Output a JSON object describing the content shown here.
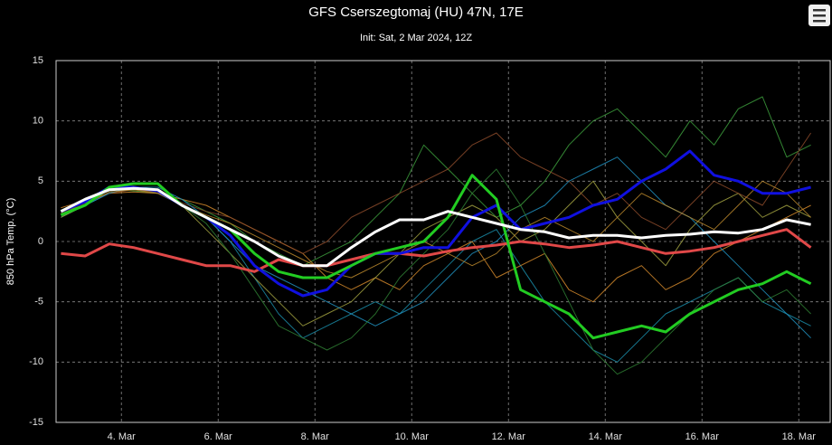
{
  "chart_data": {
    "type": "line",
    "title": "GFS Cserszegtomaj (HU) 47N, 17E",
    "subtitle": "Init: Sat, 2 Mar 2024, 12Z",
    "y_label": "850 hPa Temp. (°C)",
    "grid": true,
    "xlim": [
      2.65,
      18.65
    ],
    "ylim": [
      -15,
      15
    ],
    "yticks": [
      -15,
      -10,
      -5,
      0,
      5,
      10,
      15
    ],
    "xticks": [
      {
        "value": 4,
        "label": "4. Mar"
      },
      {
        "value": 6,
        "label": "6. Mar"
      },
      {
        "value": 8,
        "label": "8. Mar"
      },
      {
        "value": 10,
        "label": "10. Mar"
      },
      {
        "value": 12,
        "label": "12. Mar"
      },
      {
        "value": 14,
        "label": "14. Mar"
      },
      {
        "value": 16,
        "label": "16. Mar"
      },
      {
        "value": 18,
        "label": "18. Mar"
      }
    ],
    "x": [
      2.75,
      3.25,
      3.75,
      4.25,
      4.75,
      5.25,
      5.75,
      6.25,
      6.75,
      7.25,
      7.75,
      8.25,
      8.75,
      9.25,
      9.75,
      10.25,
      10.75,
      11.25,
      11.75,
      12.25,
      12.75,
      13.25,
      13.75,
      14.25,
      14.75,
      15.25,
      15.75,
      16.25,
      16.75,
      17.25,
      17.75,
      18.25
    ],
    "series": [
      {
        "color": "#1a8ca8",
        "width": 1,
        "values": [
          2,
          3,
          4,
          4.5,
          4,
          3,
          2,
          0,
          -3,
          -6,
          -8,
          -7,
          -6,
          -5,
          -6,
          -4,
          -2,
          0,
          1,
          -2,
          -5,
          -7,
          -9,
          -10,
          -8,
          -6,
          -5,
          -4,
          -3,
          -5,
          -6,
          -7
        ]
      },
      {
        "color": "#3c9c3c",
        "width": 1,
        "values": [
          2.5,
          3,
          4.3,
          4.2,
          4,
          3.5,
          2.5,
          1.5,
          0,
          -1,
          -2,
          -1,
          0,
          2,
          4,
          8,
          6,
          4,
          2,
          3,
          5,
          8,
          10,
          11,
          9,
          7,
          10,
          8,
          11,
          12,
          7,
          8
        ]
      },
      {
        "color": "#d58a2c",
        "width": 1,
        "values": [
          2.8,
          3.4,
          4,
          4.1,
          4,
          3.5,
          3,
          2,
          1,
          0,
          -1,
          -3,
          -4,
          -3,
          -4,
          -2,
          -1,
          0,
          -3,
          -2,
          -1,
          -4,
          -5,
          -3,
          -2,
          -4,
          -3,
          -1,
          0,
          1,
          2,
          3
        ]
      },
      {
        "color": "#a0a040",
        "width": 1,
        "values": [
          2,
          3,
          4.5,
          4.6,
          4.2,
          3,
          1,
          -1,
          -3,
          -5,
          -7,
          -6,
          -5,
          -3,
          -1,
          1,
          2,
          3,
          2,
          0,
          1,
          3,
          5,
          2,
          0,
          -2,
          1,
          3,
          4,
          2,
          3,
          2
        ]
      },
      {
        "color": "#8b4a2a",
        "width": 1,
        "values": [
          2.4,
          3.2,
          4,
          4.3,
          4.1,
          3.2,
          2.5,
          2,
          1,
          0,
          -1,
          0,
          2,
          3,
          4,
          5,
          6,
          8,
          9,
          7,
          6,
          5,
          3,
          4,
          2,
          1,
          3,
          5,
          4,
          3,
          6,
          9
        ]
      },
      {
        "color": "#2090c0",
        "width": 1,
        "values": [
          2.2,
          3,
          4,
          4.5,
          4.5,
          3.5,
          2,
          0,
          -2,
          -3,
          -4,
          -5,
          -6,
          -7,
          -6,
          -5,
          -3,
          -1,
          0,
          2,
          3,
          5,
          6,
          7,
          5,
          3,
          2,
          0,
          -2,
          -4,
          -6,
          -8
        ]
      },
      {
        "color": "#2e7d32",
        "width": 1,
        "values": [
          2.6,
          3.5,
          4.2,
          4.4,
          4.3,
          3,
          1.5,
          -1,
          -4,
          -7,
          -8,
          -9,
          -8,
          -6,
          -3,
          -1,
          1,
          4,
          6,
          3,
          -1,
          -5,
          -9,
          -11,
          -10,
          -8,
          -6,
          -4,
          -3,
          -5,
          -4,
          -6
        ]
      },
      {
        "color": "#b8862b",
        "width": 1,
        "values": [
          2.3,
          3.1,
          4.1,
          4.3,
          4,
          3,
          2.2,
          1.5,
          0.5,
          -0.5,
          -1.5,
          -2.5,
          -3,
          -2,
          -1,
          0,
          -1,
          -2,
          -1,
          1,
          2,
          1,
          0,
          2,
          4,
          3,
          2,
          1,
          3,
          5,
          4,
          2
        ]
      },
      {
        "color": "#e04848",
        "width": 3,
        "values": [
          -1,
          -1.2,
          -0.2,
          -0.5,
          -1,
          -1.5,
          -2,
          -2,
          -2.5,
          -1.5,
          -2,
          -2,
          -1.5,
          -1,
          -1,
          -1.2,
          -0.8,
          -0.5,
          -0.3,
          0,
          -0.2,
          -0.5,
          -0.3,
          0,
          -0.5,
          -1,
          -0.8,
          -0.5,
          0,
          0.5,
          1,
          -0.5
        ]
      },
      {
        "color": "#1010e0",
        "width": 3,
        "values": [
          2.5,
          3.3,
          4.5,
          4.5,
          4.2,
          3,
          2,
          0.5,
          -2,
          -3.5,
          -4.5,
          -4,
          -2,
          -1,
          -1,
          -0.5,
          -0.5,
          2,
          3,
          1,
          1.5,
          2,
          3,
          3.5,
          5,
          6,
          7.5,
          5.5,
          5,
          4,
          4,
          4.5
        ]
      },
      {
        "color": "#22cc22",
        "width": 3,
        "values": [
          2.2,
          3,
          4.5,
          4.8,
          4.8,
          3,
          2,
          1,
          -1,
          -2.5,
          -3,
          -3,
          -2,
          -1,
          -0.5,
          0,
          2,
          5.5,
          3.5,
          -4,
          -5,
          -6,
          -8,
          -7.5,
          -7,
          -7.5,
          -6,
          -5,
          -4,
          -3.5,
          -2.5,
          -3.5
        ]
      },
      {
        "color": "#ffffff",
        "width": 3,
        "values": [
          2.5,
          3.5,
          4.3,
          4.4,
          4.3,
          3,
          2,
          1,
          0,
          -1.2,
          -2,
          -2,
          -0.5,
          0.8,
          1.8,
          1.8,
          2.5,
          2,
          1.5,
          1,
          0.8,
          0.3,
          0.5,
          0.5,
          0.3,
          0.5,
          0.6,
          0.8,
          0.7,
          1,
          1.8,
          1.4
        ]
      }
    ]
  }
}
